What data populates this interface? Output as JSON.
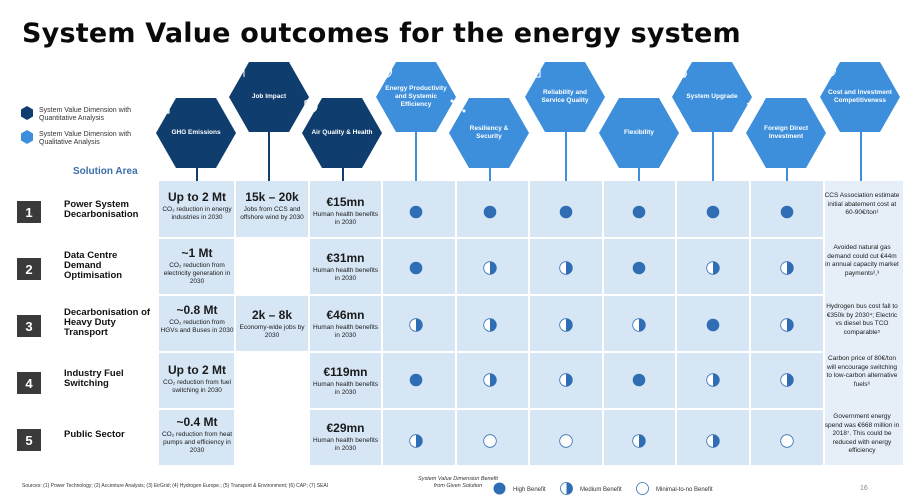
{
  "title": "System Value outcomes for the energy system",
  "legend": {
    "quantitative": "System Value Dimension with Quantitative Analysis",
    "qualitative": "System Value Dimension with Qualitative Analysis"
  },
  "solution_area_label": "Solution Area",
  "dimensions": [
    {
      "label": "GHG Emissions",
      "icon": "factory-icon"
    },
    {
      "label": "Job Impact",
      "icon": "people-icon"
    },
    {
      "label": "Air Quality & Health",
      "icon": "health-shield-icon"
    },
    {
      "label": "Energy Productivity and Systemic Efficiency",
      "icon": "gauge-icon"
    },
    {
      "label": "Resiliency & Security",
      "icon": "network-icon"
    },
    {
      "label": "Reliability and Service Quality",
      "icon": "checklist-icon"
    },
    {
      "label": "Flexibility",
      "icon": "flex-arrow-icon"
    },
    {
      "label": "System Upgrade",
      "icon": "grid-upgrade-icon"
    },
    {
      "label": "Foreign Direct Investment",
      "icon": "handshake-icon"
    },
    {
      "label": "Cost and Investment Competitiveness",
      "icon": "cost-cycle-icon"
    }
  ],
  "rows": [
    {
      "num": "1",
      "label": "Power System Decarbonisation",
      "ghg_big": "Up to 2 Mt",
      "ghg_small": "CO₂ reduction in energy industries in 2030",
      "jobs_big": "15k – 20k",
      "jobs_small": "Jobs from CCS and offshore wind by 2030",
      "health_big": "€15mn",
      "health_small": "Human health benefits in 2030",
      "benefits": [
        "high",
        "high",
        "high",
        "high",
        "high",
        "high"
      ],
      "note": "CCS Association estimate initial abatement cost at 60-90€/ton¹"
    },
    {
      "num": "2",
      "label": "Data Centre Demand Optimisation",
      "ghg_big": "~1 Mt",
      "ghg_small": "CO₂ reduction from electricity generation in 2030",
      "jobs_big": "",
      "jobs_small": "",
      "health_big": "€31mn",
      "health_small": "Human health benefits in 2030",
      "benefits": [
        "high",
        "medium",
        "medium",
        "high",
        "medium",
        "medium"
      ],
      "note": "Avoided natural gas demand could cut €44m in annual capacity market payments²,³"
    },
    {
      "num": "3",
      "label": "Decarbonisation of Heavy Duty Transport",
      "ghg_big": "~0.8 Mt",
      "ghg_small": "CO₂ reduction from HGVs and Buses in 2030",
      "jobs_big": "2k – 8k",
      "jobs_small": "Economy-wide jobs by 2030",
      "health_big": "€46mn",
      "health_small": "Human health benefits in 2030",
      "benefits": [
        "medium",
        "medium",
        "medium",
        "medium",
        "high",
        "medium"
      ],
      "note": "Hydrogen bus cost fall to €350k by 2030⁴; Electric vs diesel bus TCO comparable⁵"
    },
    {
      "num": "4",
      "label": "Industry Fuel Switching",
      "ghg_big": "Up to 2 Mt",
      "ghg_small": "CO₂ reduction from fuel switching in 2030",
      "jobs_big": "",
      "jobs_small": "",
      "health_big": "€119mn",
      "health_small": "Human health benefits in 2030",
      "benefits": [
        "high",
        "medium",
        "medium",
        "high",
        "medium",
        "medium"
      ],
      "note": "Carbon price of 80€/ton will encourage switching to low-carbon alternative fuels⁶"
    },
    {
      "num": "5",
      "label": "Public Sector",
      "ghg_big": "~0.4 Mt",
      "ghg_small": "CO₂ reduction from heat pumps and efficiency in 2030",
      "jobs_big": "",
      "jobs_small": "",
      "health_big": "€29mn",
      "health_small": "Human health benefits in 2030",
      "benefits": [
        "medium",
        "minimal",
        "minimal",
        "medium",
        "medium",
        "minimal"
      ],
      "note": "Government energy spend was €668 million in 2018⁷. This could be reduced with energy efficiency"
    }
  ],
  "sources": "Sources: (1) Power Technology; (2) Accenture Analysis; (3) EirGrid; (4) Hydrogen Europe.; (5) Transport & Environment; (6) CAP; (7) SEAI",
  "benefit_legend": {
    "title": "System Value Dimension Benefit from Given Solution",
    "high": "High Benefit",
    "medium": "Medium Benefit",
    "minimal": "Minimal-to-no Benefit"
  },
  "colors": {
    "dark": "#0f3d6e",
    "light": "#3d8fdc",
    "panel": "#d6e6f5",
    "dot": "#2f6eb5"
  },
  "page_number": "16"
}
